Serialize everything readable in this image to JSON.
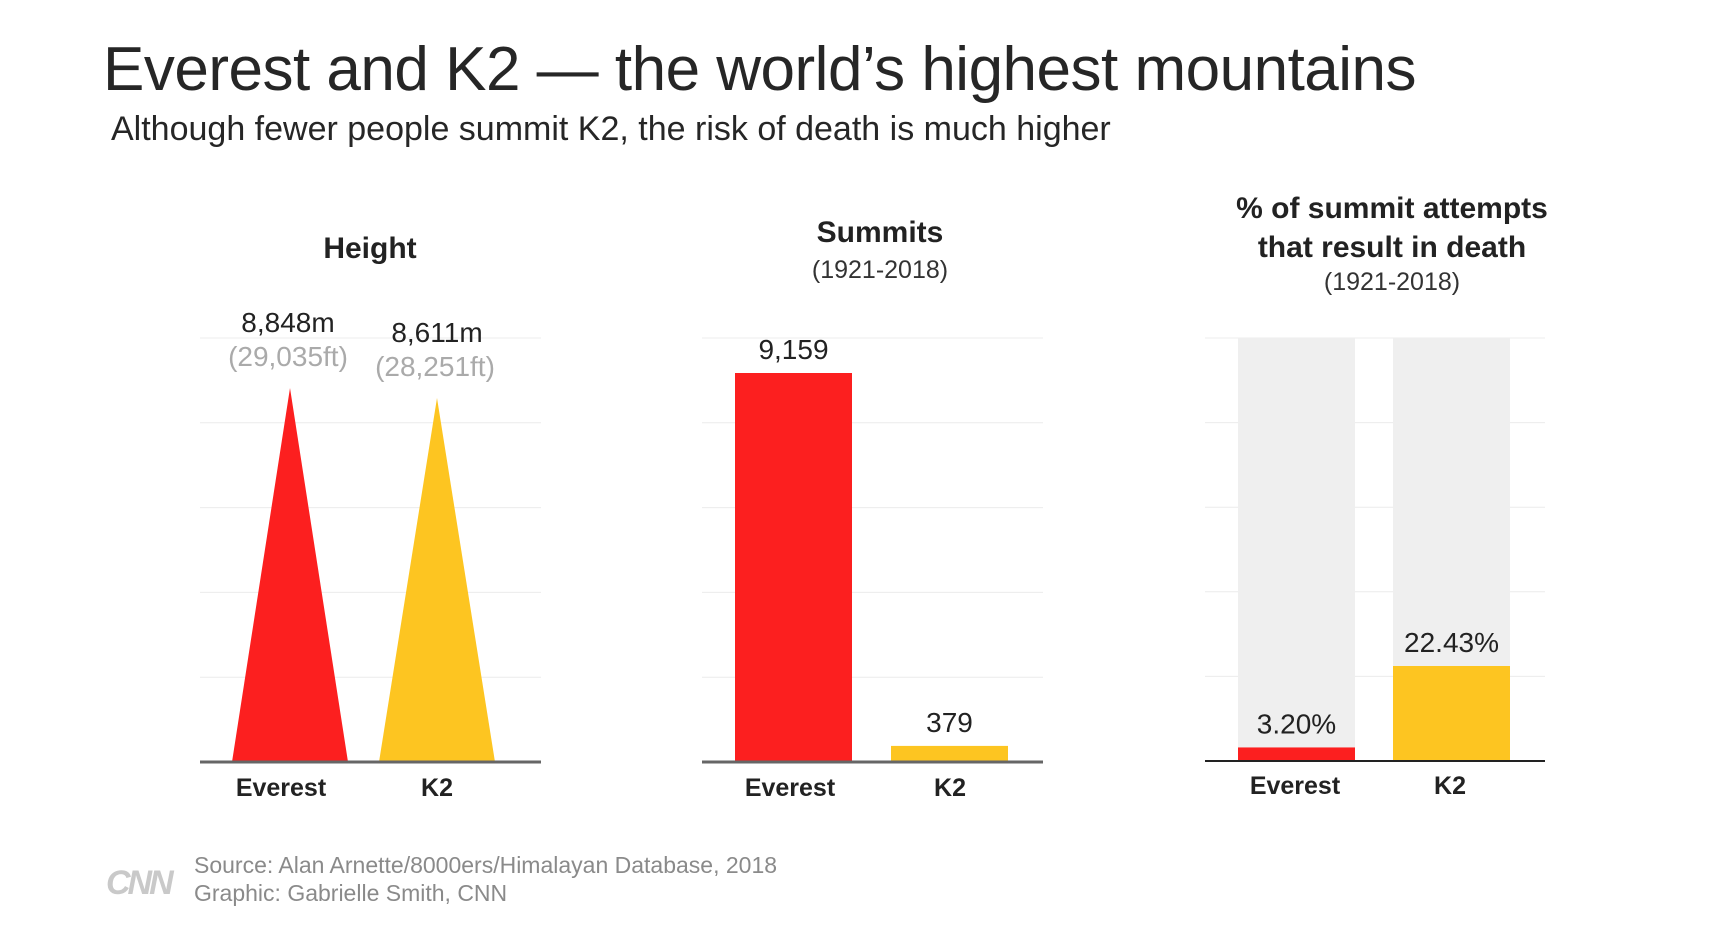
{
  "title": "Everest and K2 — the world’s highest mountains",
  "subtitle": "Although fewer people summit K2, the risk of death is much higher",
  "colors": {
    "everest": "#fc1f1f",
    "k2": "#fdc521",
    "track": "#efefef",
    "grid": "#ececec",
    "axis": "#555555",
    "secondary_label": "#aaaaaa"
  },
  "chart_data": [
    {
      "type": "bar",
      "title": "Height",
      "categories": [
        "Everest",
        "K2"
      ],
      "values": [
        8848,
        8611
      ],
      "unit": "m",
      "value_labels": [
        "8,848m",
        "8,611m"
      ],
      "secondary_labels": [
        "(29,035ft)",
        "(28,251ft)"
      ],
      "mark_shape": "triangle",
      "ylim": [
        0,
        10000
      ],
      "grid": true
    },
    {
      "type": "bar",
      "title": "Summits",
      "subtitle": "(1921-2018)",
      "categories": [
        "Everest",
        "K2"
      ],
      "values": [
        9159,
        379
      ],
      "value_labels": [
        "9,159",
        "379"
      ],
      "ylim": [
        0,
        10000
      ],
      "grid": true
    },
    {
      "type": "bar",
      "title": "% of summit attempts that result in death",
      "title_lines": [
        "% of summit attempts",
        "that result in death"
      ],
      "subtitle": "(1921-2018)",
      "categories": [
        "Everest",
        "K2"
      ],
      "values": [
        3.2,
        22.43
      ],
      "value_labels": [
        "3.20%",
        "22.43%"
      ],
      "ylim": [
        0,
        100
      ],
      "grid": true
    }
  ],
  "footer": {
    "logo": "CNN",
    "source": "Source: Alan Arnette/8000ers/Himalayan Database, 2018",
    "credit": "Graphic: Gabrielle Smith, CNN"
  }
}
